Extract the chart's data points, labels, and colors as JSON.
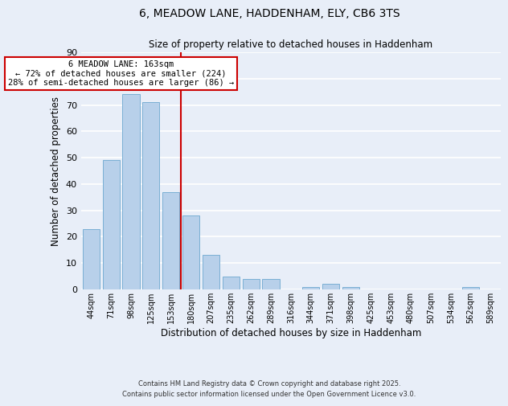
{
  "title": "6, MEADOW LANE, HADDENHAM, ELY, CB6 3TS",
  "subtitle": "Size of property relative to detached houses in Haddenham",
  "xlabel": "Distribution of detached houses by size in Haddenham",
  "ylabel": "Number of detached properties",
  "categories": [
    "44sqm",
    "71sqm",
    "98sqm",
    "125sqm",
    "153sqm",
    "180sqm",
    "207sqm",
    "235sqm",
    "262sqm",
    "289sqm",
    "316sqm",
    "344sqm",
    "371sqm",
    "398sqm",
    "425sqm",
    "453sqm",
    "480sqm",
    "507sqm",
    "534sqm",
    "562sqm",
    "589sqm"
  ],
  "values": [
    23,
    49,
    74,
    71,
    37,
    28,
    13,
    5,
    4,
    4,
    0,
    1,
    2,
    1,
    0,
    0,
    0,
    0,
    0,
    1,
    0
  ],
  "bar_color": "#b8d0ea",
  "bar_edge_color": "#7aafd4",
  "background_color": "#e8eef8",
  "grid_color": "#ffffff",
  "vline_x": 4.5,
  "vline_color": "#cc0000",
  "annotation_text": "6 MEADOW LANE: 163sqm\n← 72% of detached houses are smaller (224)\n28% of semi-detached houses are larger (86) →",
  "annotation_box_color": "#ffffff",
  "annotation_box_edge_color": "#cc0000",
  "ylim": [
    0,
    90
  ],
  "yticks": [
    0,
    10,
    20,
    30,
    40,
    50,
    60,
    70,
    80,
    90
  ],
  "footnote1": "Contains HM Land Registry data © Crown copyright and database right 2025.",
  "footnote2": "Contains public sector information licensed under the Open Government Licence v3.0."
}
